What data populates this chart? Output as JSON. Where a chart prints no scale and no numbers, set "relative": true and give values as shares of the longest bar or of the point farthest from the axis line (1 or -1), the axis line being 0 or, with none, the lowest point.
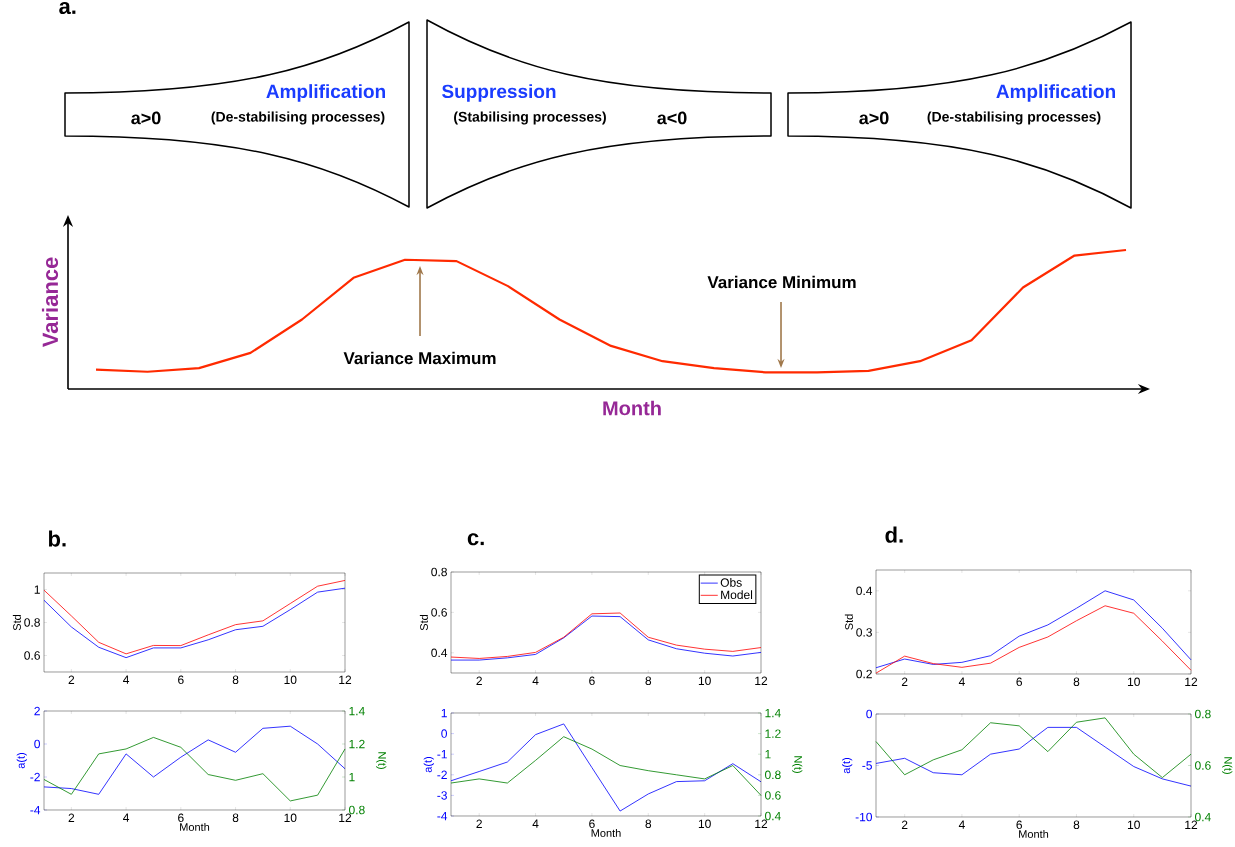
{
  "chart_data": [
    {
      "type": "line",
      "title": "a.",
      "xlabel": "Month",
      "ylabel": "Variance",
      "relative": true,
      "categories": [
        null,
        null,
        null,
        null,
        null,
        null,
        null,
        null,
        null,
        null,
        null,
        null,
        null,
        null,
        null,
        null,
        null,
        null,
        null,
        null,
        null
      ],
      "series": [
        {
          "color": "#ff2a00",
          "values": [
            0.14,
            0.124,
            0.15,
            0.26,
            0.5,
            0.8,
            0.93,
            0.92,
            0.74,
            0.5,
            0.31,
            0.2,
            0.15,
            0.12,
            0.12,
            0.13,
            0.2,
            0.35,
            0.73,
            0.96,
            1.0
          ]
        }
      ],
      "annotations": [
        "Amplification",
        "a>0",
        "(De-stabilising processes)",
        "Suppression",
        "(Stabilising processes)",
        "a<0",
        "Amplification",
        "a>0",
        "(De-stabilising processes)",
        "Variance Maximum",
        "Variance Minimum"
      ]
    },
    {
      "type": "line",
      "title": "b.",
      "ylabel": "Std",
      "x": [
        1,
        2,
        3,
        4,
        5,
        6,
        7,
        8,
        9,
        10,
        11,
        12
      ],
      "xlim": [
        1,
        12
      ],
      "xticks": [
        2,
        4,
        6,
        8,
        10,
        12
      ],
      "ylim": [
        0.5,
        1.1
      ],
      "yticks": [
        0.6,
        0.8,
        1
      ],
      "series": [
        {
          "color": "#0000ff",
          "values": [
            0.935,
            0.773,
            0.65,
            0.587,
            0.646,
            0.646,
            0.695,
            0.756,
            0.777,
            0.878,
            0.984,
            1.008
          ]
        },
        {
          "color": "#ff0000",
          "values": [
            0.996,
            0.84,
            0.68,
            0.61,
            0.661,
            0.66,
            0.725,
            0.787,
            0.81,
            0.915,
            1.02,
            1.055
          ]
        }
      ]
    },
    {
      "type": "line",
      "xlabel": "Month",
      "ylabel": "a(t)",
      "y2label": "N(t)",
      "x": [
        1,
        2,
        3,
        4,
        5,
        6,
        7,
        8,
        9,
        10,
        11,
        12
      ],
      "xlim": [
        1,
        12
      ],
      "xticks": [
        2,
        4,
        6,
        8,
        10,
        12
      ],
      "ylim": [
        -4,
        2
      ],
      "yticks": [
        -4,
        -2,
        0,
        2
      ],
      "y2lim": [
        0.8,
        1.4
      ],
      "y2ticks": [
        0.8,
        1,
        1.2,
        1.4
      ],
      "series": [
        {
          "color": "#0000ff",
          "values": [
            -2.6,
            -2.7,
            -3.05,
            -0.6,
            -2.0,
            -0.8,
            0.25,
            -0.5,
            0.95,
            1.08,
            0,
            -1.5
          ]
        },
        {
          "color": "#008000",
          "axis": "y2",
          "values": [
            0.985,
            0.895,
            1.14,
            1.17,
            1.24,
            1.18,
            1.015,
            0.98,
            1.02,
            0.855,
            0.89,
            1.17
          ]
        }
      ]
    },
    {
      "type": "line",
      "title": "c.",
      "ylabel": "Std",
      "legend": "top right",
      "x": [
        1,
        2,
        3,
        4,
        5,
        6,
        7,
        8,
        9,
        10,
        11,
        12
      ],
      "xlim": [
        1,
        12
      ],
      "xticks": [
        2,
        4,
        6,
        8,
        10,
        12
      ],
      "ylim": [
        0.3,
        0.8
      ],
      "yticks": [
        0.4,
        0.6,
        0.8
      ],
      "series": [
        {
          "name": "Obs",
          "color": "#0000ff",
          "values": [
            0.364,
            0.364,
            0.375,
            0.392,
            0.474,
            0.582,
            0.579,
            0.464,
            0.42,
            0.398,
            0.384,
            0.402
          ]
        },
        {
          "name": "Model",
          "color": "#ff0000",
          "values": [
            0.379,
            0.372,
            0.382,
            0.402,
            0.477,
            0.593,
            0.597,
            0.477,
            0.438,
            0.418,
            0.407,
            0.426
          ]
        }
      ]
    },
    {
      "type": "line",
      "xlabel": "Month",
      "ylabel": "a(t)",
      "y2label": "N(t)",
      "x": [
        1,
        2,
        3,
        4,
        5,
        6,
        7,
        8,
        9,
        10,
        11,
        12
      ],
      "xlim": [
        1,
        12
      ],
      "xticks": [
        2,
        4,
        6,
        8,
        10,
        12
      ],
      "ylim": [
        -4,
        1
      ],
      "yticks": [
        -4,
        -3,
        -2,
        -1,
        0,
        1
      ],
      "y2lim": [
        0.4,
        1.4
      ],
      "y2ticks": [
        0.4,
        0.6,
        0.8,
        1,
        1.2,
        1.4
      ],
      "series": [
        {
          "color": "#0000ff",
          "values": [
            -2.29,
            -1.84,
            -1.38,
            -0.05,
            0.47,
            -1.65,
            -3.76,
            -2.93,
            -2.33,
            -2.29,
            -1.46,
            -2.34
          ]
        },
        {
          "color": "#008000",
          "axis": "y2",
          "values": [
            0.72,
            0.76,
            0.72,
            0.94,
            1.17,
            1.05,
            0.89,
            0.84,
            0.8,
            0.76,
            0.89,
            0.6
          ]
        }
      ]
    },
    {
      "type": "line",
      "title": "d.",
      "ylabel": "Std",
      "x": [
        1,
        2,
        3,
        4,
        5,
        6,
        7,
        8,
        9,
        10,
        11,
        12
      ],
      "xlim": [
        1,
        12
      ],
      "xticks": [
        2,
        4,
        6,
        8,
        10,
        12
      ],
      "ylim": [
        0.2,
        0.45
      ],
      "yticks": [
        0.2,
        0.3,
        0.4
      ],
      "series": [
        {
          "color": "#0000ff",
          "values": [
            0.215,
            0.236,
            0.223,
            0.228,
            0.244,
            0.291,
            0.318,
            0.358,
            0.4,
            0.378,
            0.31,
            0.234
          ]
        },
        {
          "color": "#ff0000",
          "values": [
            0.202,
            0.243,
            0.225,
            0.216,
            0.226,
            0.264,
            0.289,
            0.328,
            0.364,
            0.346,
            0.279,
            0.209
          ]
        }
      ]
    },
    {
      "type": "line",
      "xlabel": "Month",
      "ylabel": "a(t)",
      "y2label": "N(t)",
      "x": [
        1,
        2,
        3,
        4,
        5,
        6,
        7,
        8,
        9,
        10,
        11,
        12
      ],
      "xlim": [
        1,
        12
      ],
      "xticks": [
        2,
        4,
        6,
        8,
        10,
        12
      ],
      "ylim": [
        -10,
        0
      ],
      "yticks": [
        -10,
        -5,
        0
      ],
      "y2lim": [
        0.4,
        0.8
      ],
      "y2ticks": [
        0.4,
        0.6,
        0.8
      ],
      "series": [
        {
          "color": "#0000ff",
          "values": [
            -4.8,
            -4.3,
            -5.7,
            -5.9,
            -3.9,
            -3.4,
            -1.3,
            -1.3,
            -3.2,
            -5.1,
            -6.3,
            -7.0
          ]
        },
        {
          "color": "#008000",
          "axis": "y2",
          "values": [
            0.693,
            0.564,
            0.622,
            0.661,
            0.766,
            0.754,
            0.654,
            0.768,
            0.785,
            0.644,
            0.553,
            0.644
          ]
        }
      ]
    }
  ]
}
